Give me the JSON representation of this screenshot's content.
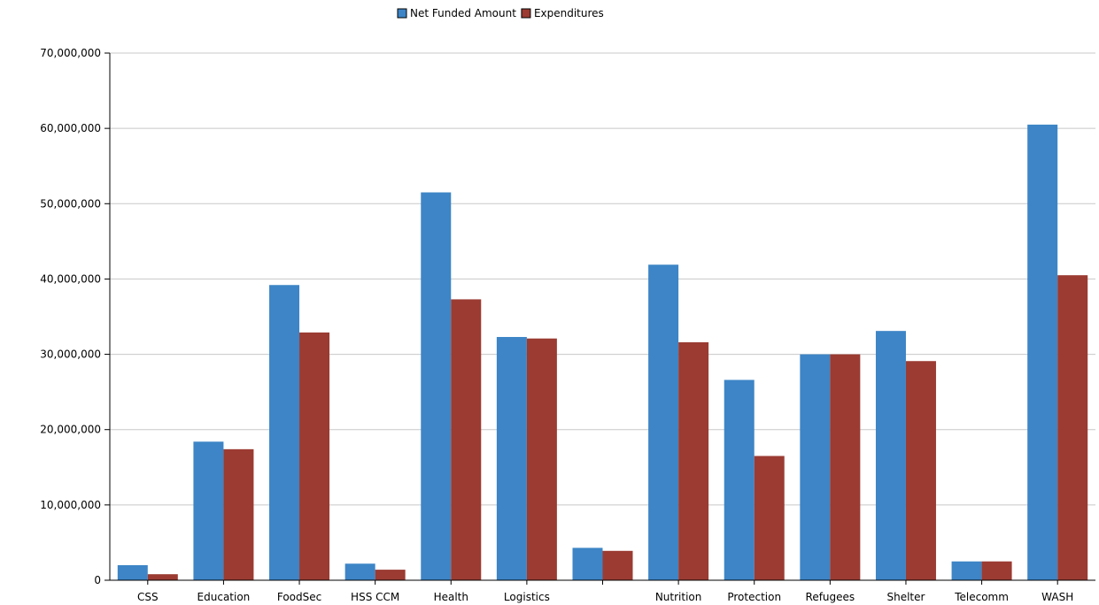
{
  "chart_data": {
    "type": "bar",
    "categories": [
      "CSS",
      "Education",
      "FoodSec",
      "HSS CCM",
      "Health",
      "Logistics",
      "",
      "Nutrition",
      "Protection",
      "Refugees",
      "Shelter",
      "Telecomm",
      "WASH"
    ],
    "series": [
      {
        "name": "Net Funded Amount",
        "color": "#3d85c6",
        "values": [
          2000000,
          18400000,
          39200000,
          2200000,
          51500000,
          32300000,
          4300000,
          41900000,
          26600000,
          30000000,
          33100000,
          2500000,
          60500000
        ]
      },
      {
        "name": "Expenditures",
        "color": "#9b3b32",
        "values": [
          800000,
          17400000,
          32900000,
          1400000,
          37300000,
          32100000,
          3900000,
          31600000,
          16500000,
          30000000,
          29100000,
          2500000,
          40500000
        ]
      }
    ],
    "ylim": [
      0,
      70000000
    ],
    "yticks": [
      "0",
      "10,000,000",
      "20,000,000",
      "30,000,000",
      "40,000,000",
      "50,000,000",
      "60,000,000",
      "70,000,000"
    ],
    "ytick_values": [
      0,
      10000000,
      20000000,
      30000000,
      40000000,
      50000000,
      60000000,
      70000000
    ],
    "grid": true,
    "legend_position": "top-center"
  }
}
